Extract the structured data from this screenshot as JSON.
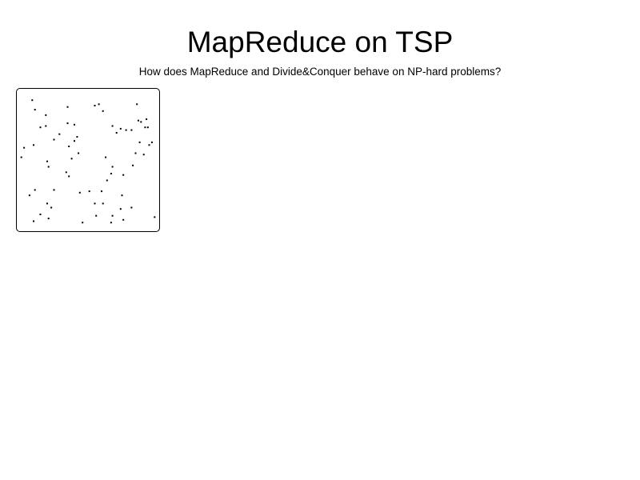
{
  "page": {
    "title": "MapReduce on TSP",
    "subtitle": "How does MapReduce and Divide&Conquer behave on NP-hard problems?"
  },
  "colors": {
    "background": "#ffffff",
    "point": "#000000",
    "border": "#000000"
  },
  "chart_data": {
    "type": "scatter",
    "title": "",
    "xlabel": "",
    "ylabel": "",
    "xlim": [
      0,
      1
    ],
    "ylim": [
      0,
      1
    ],
    "grid": false,
    "points": [
      {
        "x": 0.09,
        "y": 0.94
      },
      {
        "x": 0.11,
        "y": 0.87
      },
      {
        "x": 0.19,
        "y": 0.83
      },
      {
        "x": 0.35,
        "y": 0.89
      },
      {
        "x": 0.55,
        "y": 0.9
      },
      {
        "x": 0.58,
        "y": 0.91
      },
      {
        "x": 0.61,
        "y": 0.86
      },
      {
        "x": 0.86,
        "y": 0.91
      },
      {
        "x": 0.15,
        "y": 0.74
      },
      {
        "x": 0.19,
        "y": 0.75
      },
      {
        "x": 0.35,
        "y": 0.77
      },
      {
        "x": 0.4,
        "y": 0.76
      },
      {
        "x": 0.87,
        "y": 0.79
      },
      {
        "x": 0.89,
        "y": 0.78
      },
      {
        "x": 0.93,
        "y": 0.8
      },
      {
        "x": 0.68,
        "y": 0.75
      },
      {
        "x": 0.71,
        "y": 0.7
      },
      {
        "x": 0.74,
        "y": 0.73
      },
      {
        "x": 0.78,
        "y": 0.72
      },
      {
        "x": 0.82,
        "y": 0.72
      },
      {
        "x": 0.92,
        "y": 0.74
      },
      {
        "x": 0.94,
        "y": 0.74
      },
      {
        "x": 0.29,
        "y": 0.69
      },
      {
        "x": 0.25,
        "y": 0.65
      },
      {
        "x": 0.42,
        "y": 0.67
      },
      {
        "x": 0.4,
        "y": 0.64
      },
      {
        "x": 0.36,
        "y": 0.6
      },
      {
        "x": 0.88,
        "y": 0.63
      },
      {
        "x": 0.97,
        "y": 0.63
      },
      {
        "x": 0.95,
        "y": 0.61
      },
      {
        "x": 0.03,
        "y": 0.59
      },
      {
        "x": 0.1,
        "y": 0.61
      },
      {
        "x": 0.01,
        "y": 0.52
      },
      {
        "x": 0.43,
        "y": 0.55
      },
      {
        "x": 0.38,
        "y": 0.51
      },
      {
        "x": 0.63,
        "y": 0.52
      },
      {
        "x": 0.85,
        "y": 0.55
      },
      {
        "x": 0.91,
        "y": 0.54
      },
      {
        "x": 0.2,
        "y": 0.49
      },
      {
        "x": 0.21,
        "y": 0.45
      },
      {
        "x": 0.68,
        "y": 0.45
      },
      {
        "x": 0.34,
        "y": 0.41
      },
      {
        "x": 0.36,
        "y": 0.38
      },
      {
        "x": 0.67,
        "y": 0.4
      },
      {
        "x": 0.76,
        "y": 0.39
      },
      {
        "x": 0.83,
        "y": 0.46
      },
      {
        "x": 0.64,
        "y": 0.35
      },
      {
        "x": 0.11,
        "y": 0.28
      },
      {
        "x": 0.07,
        "y": 0.24
      },
      {
        "x": 0.25,
        "y": 0.28
      },
      {
        "x": 0.44,
        "y": 0.26
      },
      {
        "x": 0.51,
        "y": 0.27
      },
      {
        "x": 0.6,
        "y": 0.27
      },
      {
        "x": 0.75,
        "y": 0.24
      },
      {
        "x": 0.2,
        "y": 0.18
      },
      {
        "x": 0.23,
        "y": 0.15
      },
      {
        "x": 0.55,
        "y": 0.18
      },
      {
        "x": 0.74,
        "y": 0.14
      },
      {
        "x": 0.82,
        "y": 0.15
      },
      {
        "x": 0.61,
        "y": 0.18
      },
      {
        "x": 0.15,
        "y": 0.1
      },
      {
        "x": 0.21,
        "y": 0.07
      },
      {
        "x": 0.1,
        "y": 0.05
      },
      {
        "x": 0.46,
        "y": 0.04
      },
      {
        "x": 0.56,
        "y": 0.09
      },
      {
        "x": 0.68,
        "y": 0.09
      },
      {
        "x": 0.67,
        "y": 0.04
      },
      {
        "x": 0.76,
        "y": 0.06
      },
      {
        "x": 0.99,
        "y": 0.08
      }
    ]
  }
}
